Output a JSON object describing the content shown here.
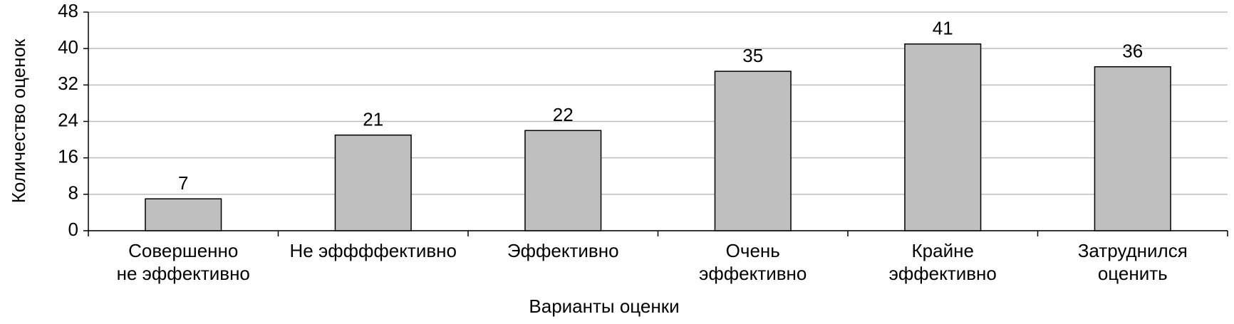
{
  "chart_data": {
    "type": "bar",
    "x_label": "Варианты оценки",
    "y_label": "Количество оценок",
    "categories": [
      [
        "Совершенно",
        "не эффективно"
      ],
      [
        "Не эффффективно"
      ],
      [
        "Эффективно"
      ],
      [
        "Очень",
        "эффективно"
      ],
      [
        "Крайне",
        "эффективно"
      ],
      [
        "Затруднился",
        "оценить"
      ]
    ],
    "values": [
      7,
      21,
      22,
      35,
      41,
      36
    ],
    "color": "#bfbfbf",
    "ylim": [
      0,
      48
    ],
    "yticks": [
      0,
      8,
      16,
      24,
      32,
      40,
      48
    ],
    "grid": true
  }
}
